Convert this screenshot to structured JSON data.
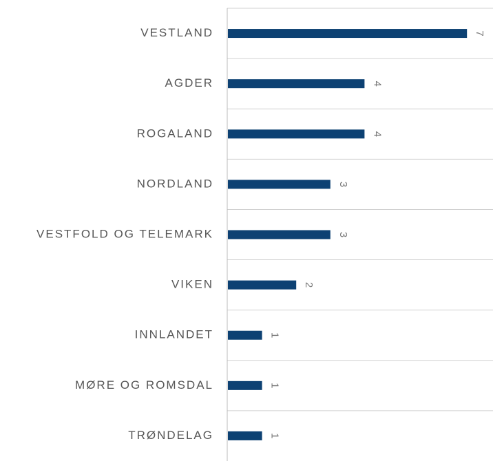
{
  "chart_data": {
    "type": "bar",
    "orientation": "horizontal",
    "categories": [
      "VESTLAND",
      "AGDER",
      "ROGALAND",
      "NORDLAND",
      "VESTFOLD OG TELEMARK",
      "VIKEN",
      "INNLANDET",
      "MØRE OG ROMSDAL",
      "TRØNDELAG"
    ],
    "values": [
      7,
      4,
      4,
      3,
      3,
      2,
      1,
      1,
      1
    ],
    "color": "#0d4173",
    "grid": true
  }
}
